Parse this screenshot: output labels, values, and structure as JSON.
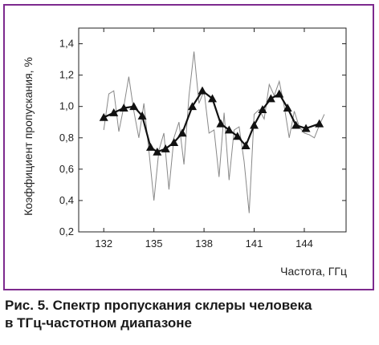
{
  "chart_data": {
    "type": "line",
    "xlabel": "Частота, ГГц",
    "ylabel": "Коэффициент пропускания, %",
    "xlim": [
      130.5,
      146.5
    ],
    "ylim": [
      0.2,
      1.5
    ],
    "x_ticks": [
      132,
      135,
      138,
      141,
      144
    ],
    "x_tick_labels": [
      "132",
      "135",
      "138",
      "141",
      "144"
    ],
    "y_ticks": [
      0.2,
      0.4,
      0.6,
      0.8,
      1.0,
      1.2,
      1.4
    ],
    "y_tick_labels": [
      "0,2",
      "0,4",
      "0,6",
      "0,8",
      "1,0",
      "1,2",
      "1,4"
    ],
    "grid": false,
    "series": [
      {
        "style": "thin-line",
        "x": [
          132.0,
          132.3,
          132.6,
          132.9,
          133.2,
          133.5,
          133.8,
          134.1,
          134.4,
          134.7,
          135.0,
          135.3,
          135.6,
          135.9,
          136.2,
          136.5,
          136.8,
          137.1,
          137.4,
          137.7,
          138.0,
          138.3,
          138.6,
          138.9,
          139.2,
          139.5,
          139.8,
          140.1,
          140.4,
          140.7,
          141.0,
          141.3,
          141.6,
          141.9,
          142.2,
          142.5,
          142.8,
          143.1,
          143.4,
          143.7,
          144.0,
          144.3,
          144.6,
          144.9,
          145.2
        ],
        "values": [
          0.85,
          1.08,
          1.1,
          0.84,
          1.0,
          1.19,
          0.97,
          0.8,
          1.02,
          0.72,
          0.4,
          0.72,
          0.83,
          0.47,
          0.8,
          0.9,
          0.63,
          1.07,
          1.35,
          1.02,
          1.1,
          0.83,
          0.85,
          0.55,
          0.96,
          0.53,
          0.85,
          0.87,
          0.65,
          0.32,
          0.95,
          0.98,
          0.92,
          1.14,
          1.07,
          1.16,
          1.0,
          0.8,
          0.97,
          0.87,
          0.83,
          0.82,
          0.8,
          0.88,
          0.95
        ]
      },
      {
        "style": "thick-line-triangle-markers",
        "x": [
          132.0,
          132.6,
          133.2,
          133.8,
          134.3,
          134.8,
          135.2,
          135.7,
          136.2,
          136.7,
          137.3,
          137.9,
          138.5,
          139.0,
          139.5,
          140.0,
          140.5,
          141.0,
          141.5,
          142.0,
          142.5,
          143.0,
          143.5,
          144.1,
          144.9
        ],
        "values": [
          0.93,
          0.96,
          0.99,
          1.0,
          0.94,
          0.74,
          0.71,
          0.73,
          0.77,
          0.83,
          1.0,
          1.1,
          1.05,
          0.89,
          0.85,
          0.81,
          0.75,
          0.88,
          0.98,
          1.05,
          1.08,
          0.99,
          0.88,
          0.86,
          0.89
        ]
      }
    ],
    "colors": {
      "thin_line": "#888888",
      "thick_line": "#111111",
      "marker": "#111111",
      "frame": "#7d2a8e"
    }
  },
  "caption": {
    "line1": "Рис. 5. Спектр пропускания склеры человека",
    "line2": "в ТГц-частотном диапазоне"
  }
}
